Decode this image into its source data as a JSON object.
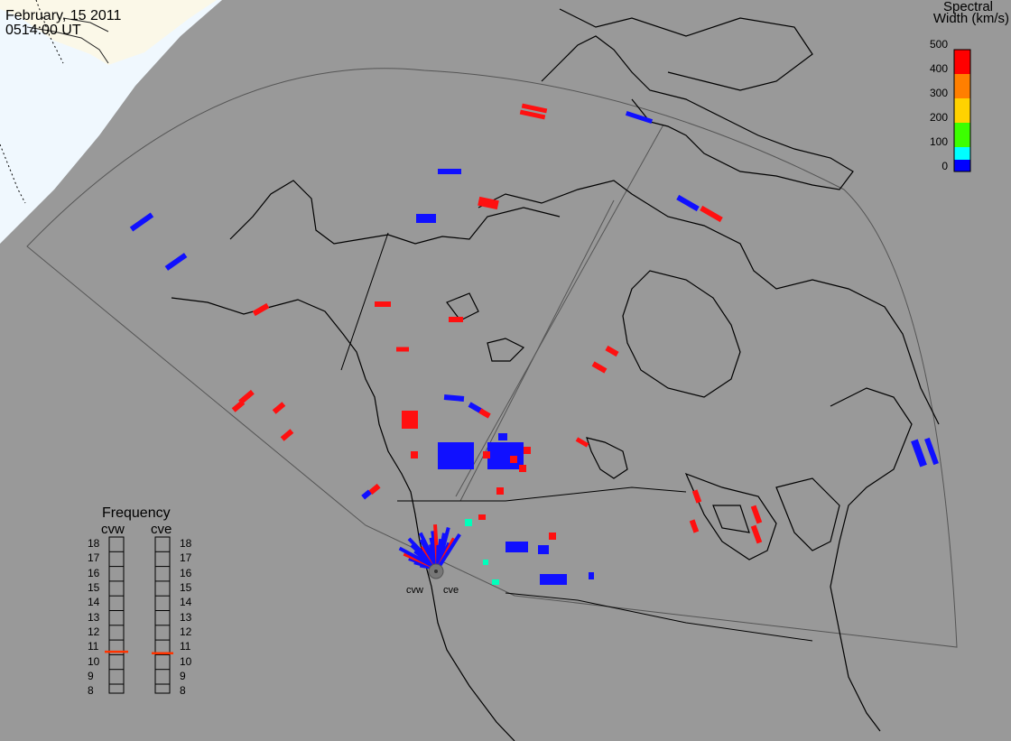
{
  "header": {
    "date": "February, 15 2011",
    "time": "0514:00 UT"
  },
  "colorbar": {
    "title_line1": "Spectral",
    "title_line2": "Width (km/s)",
    "ticks": [
      "500",
      "400",
      "300",
      "200",
      "100",
      "0"
    ],
    "colors": [
      "#ff0000",
      "#ff8000",
      "#ffff00",
      "#00ff00",
      "#00ffff",
      "#0000ff"
    ]
  },
  "frequency": {
    "title": "Frequency",
    "radars": [
      "cvw",
      "cve"
    ],
    "scale": [
      "18",
      "17",
      "16",
      "15",
      "14",
      "13",
      "12",
      "11",
      "10",
      "9",
      "8"
    ],
    "cvw_value": 10.7,
    "cve_value": 10.6
  },
  "sites": [
    "cvw",
    "cve"
  ],
  "colors": {
    "ocean": "#999999",
    "daylight": "#f0f8fe",
    "low": "#1010ff",
    "high": "#ff1010",
    "mid": "#00ffbb"
  }
}
